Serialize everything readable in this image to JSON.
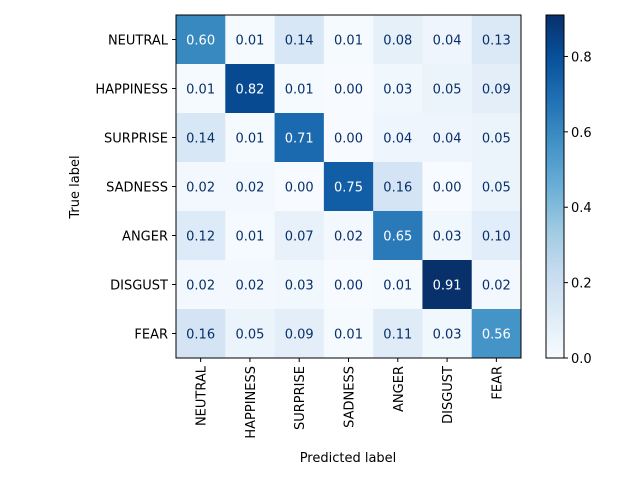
{
  "chart_data": {
    "type": "heatmap",
    "title": "",
    "xlabel": "Predicted label",
    "ylabel": "True label",
    "x_categories": [
      "NEUTRAL",
      "HAPPINESS",
      "SURPRISE",
      "SADNESS",
      "ANGER",
      "DISGUST",
      "FEAR"
    ],
    "y_categories": [
      "NEUTRAL",
      "HAPPINESS",
      "SURPRISE",
      "SADNESS",
      "ANGER",
      "DISGUST",
      "FEAR"
    ],
    "values": [
      [
        0.6,
        0.01,
        0.14,
        0.01,
        0.08,
        0.04,
        0.13
      ],
      [
        0.01,
        0.82,
        0.01,
        0.0,
        0.03,
        0.05,
        0.09
      ],
      [
        0.14,
        0.01,
        0.71,
        0.0,
        0.04,
        0.04,
        0.05
      ],
      [
        0.02,
        0.02,
        0.0,
        0.75,
        0.16,
        0.0,
        0.05
      ],
      [
        0.12,
        0.01,
        0.07,
        0.02,
        0.65,
        0.03,
        0.1
      ],
      [
        0.02,
        0.02,
        0.03,
        0.0,
        0.01,
        0.91,
        0.02
      ],
      [
        0.16,
        0.05,
        0.09,
        0.01,
        0.11,
        0.03,
        0.56
      ]
    ],
    "colormap": "Blues",
    "color_range": [
      0.0,
      0.91
    ],
    "colorbar_ticks": [
      "0.0",
      "0.2",
      "0.4",
      "0.6",
      "0.8"
    ],
    "colorbar_tick_values": [
      0.0,
      0.2,
      0.4,
      0.6,
      0.8
    ],
    "grid": false
  }
}
